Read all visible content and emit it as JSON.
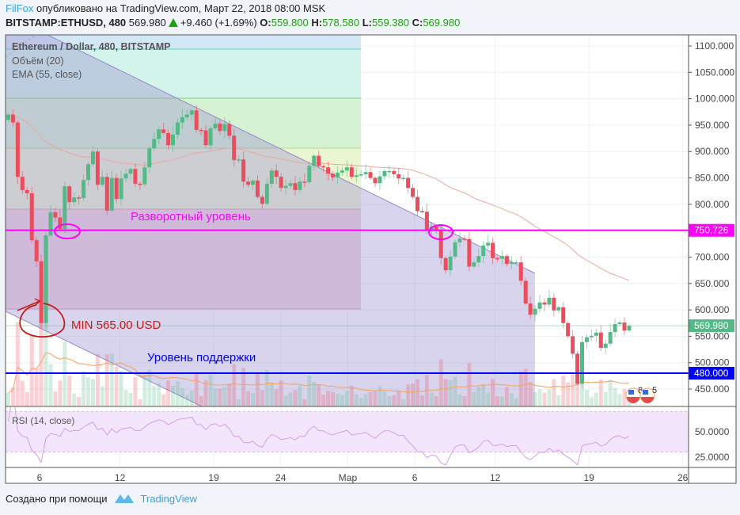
{
  "header": {
    "author": "FilFox",
    "published": "опубликовано на TradingView.com, Март 22, 2018 08:00 MSK",
    "symbol": "BITSTAMP:ETHUSD, 480",
    "last": "569.980",
    "change": "+9.460 (+1.69%)",
    "o_label": "O:",
    "o": "559.800",
    "h_label": "H:",
    "h": "578.580",
    "l_label": "L:",
    "l": "559.380",
    "c_label": "C:",
    "c": "569.980"
  },
  "legend": {
    "title": "Ethereum / Dollar, 480, BITSTAMP",
    "volume": "Объём (20)",
    "ema": "EMA (55, close)",
    "rsi": "RSI (14, close)"
  },
  "annotations": {
    "reversal": "Разворотный уровень",
    "min": "MIN 565.00 USD",
    "support": "Уровень поддержки",
    "reversal_price": "750.726",
    "support_price": "480.000",
    "current_price": "569.980"
  },
  "events": [
    "8",
    "5"
  ],
  "footer": {
    "made_with": "Создано при помощи",
    "brand": "TradingView"
  },
  "colors": {
    "up": "#53b987",
    "down": "#eb4d5c",
    "reversal": "#ff00ff",
    "support": "#0000ff",
    "min_text": "#c41a1a",
    "ema": "#e8a8a0",
    "rsi": "#d49ce8",
    "author": "#3aa3e3"
  },
  "chart_data": {
    "type": "candlestick",
    "interval_minutes": 480,
    "start": "2018-02-03T16:00",
    "end": "2018-03-22T00:00",
    "first_open": 960,
    "close": [
      970,
      955,
      852,
      827,
      821,
      732,
      692,
      575,
      741,
      785,
      775,
      753,
      834,
      804,
      813,
      812,
      846,
      876,
      900,
      837,
      852,
      788,
      850,
      810,
      849,
      858,
      867,
      839,
      838,
      870,
      906,
      924,
      942,
      935,
      912,
      932,
      955,
      965,
      970,
      978,
      941,
      940,
      912,
      944,
      953,
      939,
      952,
      930,
      884,
      885,
      843,
      837,
      845,
      814,
      801,
      839,
      864,
      852,
      831,
      835,
      840,
      827,
      843,
      842,
      873,
      892,
      872,
      870,
      858,
      851,
      860,
      864,
      870,
      852,
      855,
      857,
      861,
      850,
      840,
      853,
      863,
      863,
      857,
      849,
      850,
      831,
      814,
      787,
      786,
      752,
      758,
      752,
      698,
      675,
      701,
      728,
      735,
      734,
      682,
      690,
      702,
      722,
      727,
      698,
      697,
      702,
      687,
      690,
      690,
      655,
      612,
      591,
      602,
      614,
      610,
      623,
      599,
      605,
      575,
      550,
      517,
      460,
      539,
      548,
      551,
      557,
      528,
      536,
      558,
      573,
      576,
      561,
      569.98
    ],
    "price_ticks": [
      "1100.000",
      "1050.000",
      "1000.000",
      "950.000",
      "900.000",
      "850.000",
      "800.000",
      "700.000",
      "650.000",
      "600.000",
      "550.000",
      "500.000",
      "450.000"
    ],
    "time_ticks": [
      {
        "label": "6",
        "date": "2018-02-06"
      },
      {
        "label": "12",
        "date": "2018-02-12"
      },
      {
        "label": "19",
        "date": "2018-02-19"
      },
      {
        "label": "24",
        "date": "2018-02-24"
      },
      {
        "label": "Мар",
        "date": "2018-03-01"
      },
      {
        "label": "6",
        "date": "2018-03-06"
      },
      {
        "label": "12",
        "date": "2018-03-12"
      },
      {
        "label": "19",
        "date": "2018-03-19"
      },
      {
        "label": "26",
        "date": "2018-03-26"
      }
    ],
    "rsi_ticks": [
      "50.0000",
      "25.0000"
    ],
    "rsi_band": [
      30,
      70
    ],
    "levels": {
      "reversal": 750.726,
      "support": 480,
      "current": 569.98,
      "min": 565
    },
    "grid": true
  }
}
